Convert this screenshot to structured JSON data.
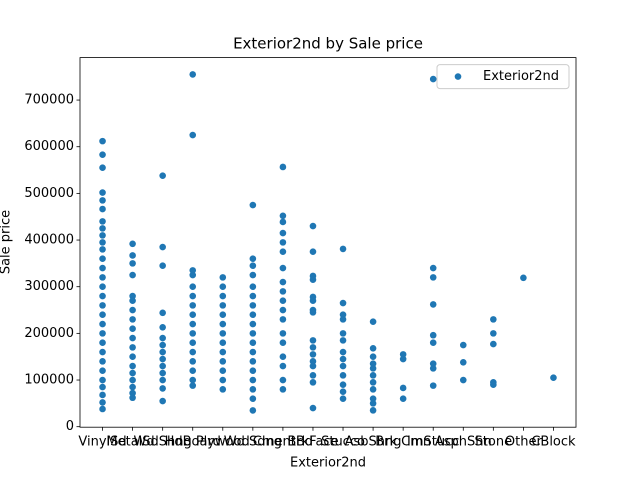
{
  "chart_data": {
    "type": "scatter",
    "title": "Exterior2nd by Sale price",
    "x_label": "Exterior2nd",
    "y_label": "Sale price",
    "categories": [
      "VinylSd",
      "MetalSd",
      "Wd Shng",
      "HdBoard",
      "Plywood",
      "Wd Sdng",
      "CmentBd",
      "BrkFace",
      "Stucco",
      "AsbShng",
      "Brk Cmn",
      "ImStucc",
      "AsphShn",
      "Stone",
      "Other",
      "CBlock"
    ],
    "xlim": [
      -0.75,
      15.75
    ],
    "ylim": [
      -1100,
      791000
    ],
    "yticks": [
      0,
      100000,
      200000,
      300000,
      400000,
      500000,
      600000,
      700000
    ],
    "legend": "upper right",
    "series": [
      {
        "name": "Exterior2nd",
        "color": "#1f77b4",
        "points": [
          [
            "VinylSd",
            612000
          ],
          [
            "VinylSd",
            582933
          ],
          [
            "VinylSd",
            555000
          ],
          [
            "VinylSd",
            501837
          ],
          [
            "VinylSd",
            485000
          ],
          [
            "VinylSd",
            466500
          ],
          [
            "VinylSd",
            440000
          ],
          [
            "VinylSd",
            425000
          ],
          [
            "VinylSd",
            410000
          ],
          [
            "VinylSd",
            395000
          ],
          [
            "VinylSd",
            380000
          ],
          [
            "VinylSd",
            360000
          ],
          [
            "VinylSd",
            340000
          ],
          [
            "VinylSd",
            320000
          ],
          [
            "VinylSd",
            300000
          ],
          [
            "VinylSd",
            280000
          ],
          [
            "VinylSd",
            260000
          ],
          [
            "VinylSd",
            240000
          ],
          [
            "VinylSd",
            220000
          ],
          [
            "VinylSd",
            200000
          ],
          [
            "VinylSd",
            180000
          ],
          [
            "VinylSd",
            160000
          ],
          [
            "VinylSd",
            140000
          ],
          [
            "VinylSd",
            120000
          ],
          [
            "VinylSd",
            100000
          ],
          [
            "VinylSd",
            85000
          ],
          [
            "VinylSd",
            68000
          ],
          [
            "VinylSd",
            52000
          ],
          [
            "VinylSd",
            37900
          ],
          [
            "MetalSd",
            392000
          ],
          [
            "MetalSd",
            367000
          ],
          [
            "MetalSd",
            350000
          ],
          [
            "MetalSd",
            325000
          ],
          [
            "MetalSd",
            280000
          ],
          [
            "MetalSd",
            270000
          ],
          [
            "MetalSd",
            250000
          ],
          [
            "MetalSd",
            230000
          ],
          [
            "MetalSd",
            210000
          ],
          [
            "MetalSd",
            190000
          ],
          [
            "MetalSd",
            170000
          ],
          [
            "MetalSd",
            150000
          ],
          [
            "MetalSd",
            130000
          ],
          [
            "MetalSd",
            115000
          ],
          [
            "MetalSd",
            100000
          ],
          [
            "MetalSd",
            85000
          ],
          [
            "MetalSd",
            72000
          ],
          [
            "MetalSd",
            62000
          ],
          [
            "Wd Shng",
            538000
          ],
          [
            "Wd Shng",
            385000
          ],
          [
            "Wd Shng",
            345000
          ],
          [
            "Wd Shng",
            244000
          ],
          [
            "Wd Shng",
            213000
          ],
          [
            "Wd Shng",
            190000
          ],
          [
            "Wd Shng",
            175000
          ],
          [
            "Wd Shng",
            160000
          ],
          [
            "Wd Shng",
            145000
          ],
          [
            "Wd Shng",
            130000
          ],
          [
            "Wd Shng",
            115000
          ],
          [
            "Wd Shng",
            100000
          ],
          [
            "Wd Shng",
            82000
          ],
          [
            "Wd Shng",
            55000
          ],
          [
            "HdBoard",
            755000
          ],
          [
            "HdBoard",
            625000
          ],
          [
            "HdBoard",
            335000
          ],
          [
            "HdBoard",
            325000
          ],
          [
            "HdBoard",
            300000
          ],
          [
            "HdBoard",
            280000
          ],
          [
            "HdBoard",
            260000
          ],
          [
            "HdBoard",
            240000
          ],
          [
            "HdBoard",
            220000
          ],
          [
            "HdBoard",
            200000
          ],
          [
            "HdBoard",
            180000
          ],
          [
            "HdBoard",
            160000
          ],
          [
            "HdBoard",
            140000
          ],
          [
            "HdBoard",
            120000
          ],
          [
            "HdBoard",
            100000
          ],
          [
            "HdBoard",
            88000
          ],
          [
            "Plywood",
            320000
          ],
          [
            "Plywood",
            300000
          ],
          [
            "Plywood",
            280000
          ],
          [
            "Plywood",
            260000
          ],
          [
            "Plywood",
            240000
          ],
          [
            "Plywood",
            220000
          ],
          [
            "Plywood",
            200000
          ],
          [
            "Plywood",
            180000
          ],
          [
            "Plywood",
            160000
          ],
          [
            "Plywood",
            140000
          ],
          [
            "Plywood",
            120000
          ],
          [
            "Plywood",
            100000
          ],
          [
            "Plywood",
            80000
          ],
          [
            "Wd Sdng",
            475000
          ],
          [
            "Wd Sdng",
            360000
          ],
          [
            "Wd Sdng",
            345000
          ],
          [
            "Wd Sdng",
            325000
          ],
          [
            "Wd Sdng",
            300000
          ],
          [
            "Wd Sdng",
            280000
          ],
          [
            "Wd Sdng",
            260000
          ],
          [
            "Wd Sdng",
            240000
          ],
          [
            "Wd Sdng",
            220000
          ],
          [
            "Wd Sdng",
            200000
          ],
          [
            "Wd Sdng",
            180000
          ],
          [
            "Wd Sdng",
            160000
          ],
          [
            "Wd Sdng",
            140000
          ],
          [
            "Wd Sdng",
            120000
          ],
          [
            "Wd Sdng",
            100000
          ],
          [
            "Wd Sdng",
            80000
          ],
          [
            "Wd Sdng",
            60000
          ],
          [
            "Wd Sdng",
            34900
          ],
          [
            "CmentBd",
            556581
          ],
          [
            "CmentBd",
            451950
          ],
          [
            "CmentBd",
            438780
          ],
          [
            "CmentBd",
            415000
          ],
          [
            "CmentBd",
            395000
          ],
          [
            "CmentBd",
            375000
          ],
          [
            "CmentBd",
            340000
          ],
          [
            "CmentBd",
            310000
          ],
          [
            "CmentBd",
            290000
          ],
          [
            "CmentBd",
            270000
          ],
          [
            "CmentBd",
            250000
          ],
          [
            "CmentBd",
            230000
          ],
          [
            "CmentBd",
            200000
          ],
          [
            "CmentBd",
            180000
          ],
          [
            "CmentBd",
            150000
          ],
          [
            "CmentBd",
            130000
          ],
          [
            "CmentBd",
            100000
          ],
          [
            "CmentBd",
            80000
          ],
          [
            "BrkFace",
            430000
          ],
          [
            "BrkFace",
            375000
          ],
          [
            "BrkFace",
            323000
          ],
          [
            "BrkFace",
            315000
          ],
          [
            "BrkFace",
            278000
          ],
          [
            "BrkFace",
            270000
          ],
          [
            "BrkFace",
            250000
          ],
          [
            "BrkFace",
            245000
          ],
          [
            "BrkFace",
            185000
          ],
          [
            "BrkFace",
            170000
          ],
          [
            "BrkFace",
            155000
          ],
          [
            "BrkFace",
            140000
          ],
          [
            "BrkFace",
            130000
          ],
          [
            "BrkFace",
            110000
          ],
          [
            "BrkFace",
            95000
          ],
          [
            "BrkFace",
            40000
          ],
          [
            "Stucco",
            381000
          ],
          [
            "Stucco",
            265000
          ],
          [
            "Stucco",
            240000
          ],
          [
            "Stucco",
            230000
          ],
          [
            "Stucco",
            200000
          ],
          [
            "Stucco",
            185000
          ],
          [
            "Stucco",
            160000
          ],
          [
            "Stucco",
            145000
          ],
          [
            "Stucco",
            130000
          ],
          [
            "Stucco",
            110000
          ],
          [
            "Stucco",
            90000
          ],
          [
            "Stucco",
            75000
          ],
          [
            "Stucco",
            60000
          ],
          [
            "AsbShng",
            225000
          ],
          [
            "AsbShng",
            168000
          ],
          [
            "AsbShng",
            150000
          ],
          [
            "AsbShng",
            135000
          ],
          [
            "AsbShng",
            125000
          ],
          [
            "AsbShng",
            110000
          ],
          [
            "AsbShng",
            95000
          ],
          [
            "AsbShng",
            80000
          ],
          [
            "AsbShng",
            60000
          ],
          [
            "AsbShng",
            50000
          ],
          [
            "AsbShng",
            35000
          ],
          [
            "Brk Cmn",
            155000
          ],
          [
            "Brk Cmn",
            145000
          ],
          [
            "Brk Cmn",
            83000
          ],
          [
            "Brk Cmn",
            60000
          ],
          [
            "ImStucc",
            745000
          ],
          [
            "ImStucc",
            340000
          ],
          [
            "ImStucc",
            320000
          ],
          [
            "ImStucc",
            262000
          ],
          [
            "ImStucc",
            196000
          ],
          [
            "ImStucc",
            180000
          ],
          [
            "ImStucc",
            135000
          ],
          [
            "ImStucc",
            125000
          ],
          [
            "ImStucc",
            88000
          ],
          [
            "AsphShn",
            175000
          ],
          [
            "AsphShn",
            138000
          ],
          [
            "AsphShn",
            100000
          ],
          [
            "Stone",
            230000
          ],
          [
            "Stone",
            200000
          ],
          [
            "Stone",
            177000
          ],
          [
            "Stone",
            95000
          ],
          [
            "Stone",
            90000
          ],
          [
            "Other",
            319000
          ],
          [
            "CBlock",
            105000
          ]
        ]
      }
    ]
  }
}
